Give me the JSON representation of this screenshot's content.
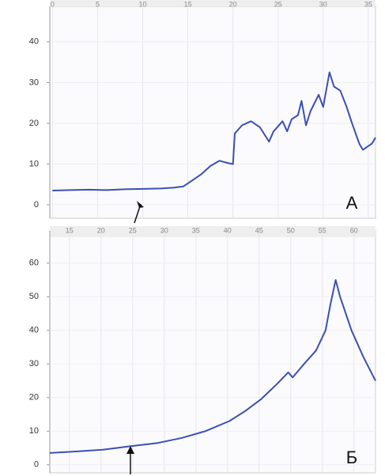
{
  "chart_data": [
    {
      "type": "line",
      "annotation": "A",
      "grid": true,
      "xlim": [
        -0.3,
        35.8
      ],
      "ylim": [
        -3.3,
        48.7
      ],
      "xticks": [
        0,
        5,
        10,
        15,
        20,
        25,
        30,
        35
      ],
      "yticks": [
        0,
        10,
        20,
        30,
        40
      ],
      "series": [
        {
          "color": "#3b4fb3",
          "x": [
            0,
            2,
            4,
            6,
            8,
            10,
            12,
            13.5,
            14.5,
            15.5,
            16.5,
            17.5,
            18.5,
            19.5,
            20,
            20.2,
            21,
            22,
            23,
            24,
            24.5,
            25.5,
            26,
            26.5,
            27.2,
            27.6,
            28.1,
            28.6,
            29.5,
            30,
            30.7,
            31.2,
            31.9,
            32.6,
            33.2,
            34,
            34.4,
            35.4,
            35.8
          ],
          "values": [
            3.5,
            3.6,
            3.7,
            3.6,
            3.8,
            3.9,
            4,
            4.2,
            4.5,
            6,
            7.5,
            9.5,
            10.8,
            10.2,
            10,
            17.5,
            19.5,
            20.5,
            19,
            15.5,
            18,
            20.5,
            18,
            21,
            22,
            25.5,
            19.5,
            23,
            27,
            24,
            32.5,
            29,
            28,
            24,
            20,
            15,
            13.5,
            15,
            16.5
          ]
        }
      ]
    },
    {
      "type": "line",
      "annotation": "Б",
      "grid": true,
      "xlim": [
        11.9,
        63.4
      ],
      "ylim": [
        -2.4,
        69.6
      ],
      "xticks": [
        15,
        20,
        25,
        30,
        35,
        40,
        45,
        50,
        55,
        60
      ],
      "yticks": [
        0,
        10,
        20,
        30,
        40,
        50,
        60
      ],
      "series": [
        {
          "color": "#3b4fb3",
          "x": [
            11.9,
            16.5,
            20.3,
            24.6,
            29,
            32.8,
            36.5,
            40.3,
            42.8,
            45.3,
            47.8,
            49.6,
            50.3,
            52.1,
            54,
            55.5,
            56.3,
            57.1,
            57.8,
            59.6,
            61.5,
            63.4
          ],
          "values": [
            3.5,
            4,
            4.5,
            5.5,
            6.5,
            8,
            10,
            13,
            16,
            19.5,
            24,
            27.5,
            26,
            30,
            34,
            40,
            48,
            55,
            50,
            40,
            32,
            25
          ]
        }
      ]
    }
  ]
}
